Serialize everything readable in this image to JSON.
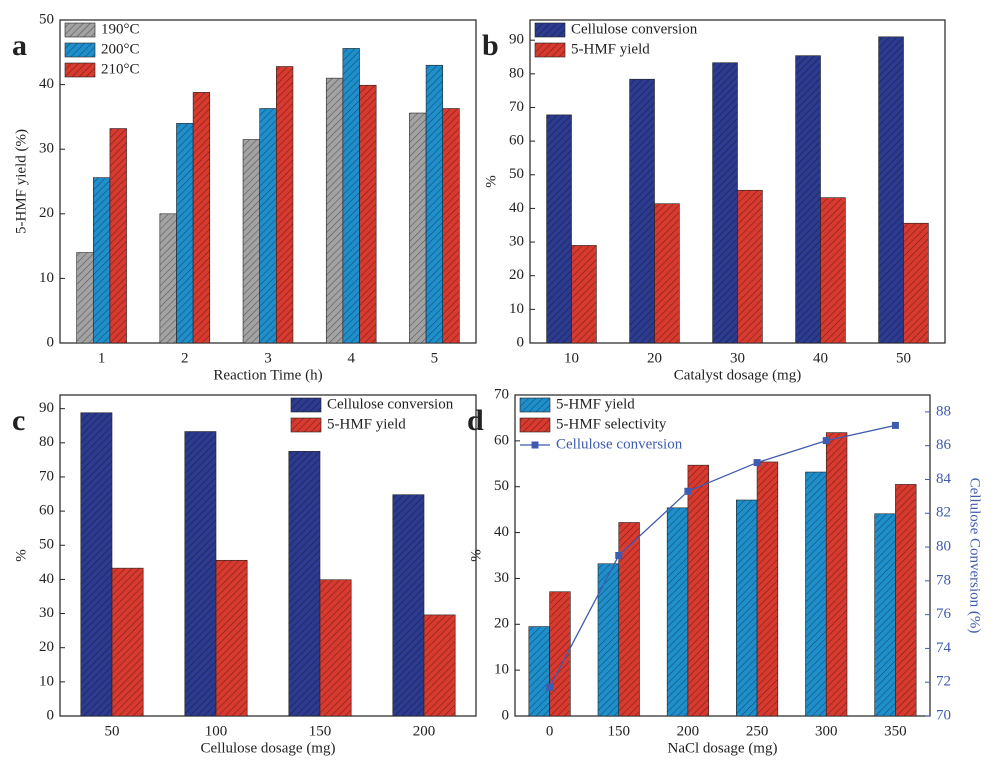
{
  "chart_data": [
    {
      "type": "bar",
      "panel_label": "a",
      "xlabel": "Reaction Time (h)",
      "ylabel": "5-HMF yield (%)",
      "categories": [
        "1",
        "2",
        "3",
        "4",
        "5"
      ],
      "series": [
        {
          "name": "190°C",
          "color": "#a3a3a3",
          "values": [
            14,
            20,
            31.5,
            41,
            35.6
          ]
        },
        {
          "name": "200°C",
          "color": "#1f8fcc",
          "values": [
            25.6,
            34,
            36.3,
            45.6,
            43
          ]
        },
        {
          "name": "210°C",
          "color": "#d83a2f",
          "values": [
            33.2,
            38.8,
            42.8,
            39.9,
            36.3
          ]
        }
      ],
      "ylim": [
        0,
        50
      ],
      "yticks": [
        0,
        10,
        20,
        30,
        40,
        50
      ],
      "legend": "upper left"
    },
    {
      "type": "bar",
      "panel_label": "b",
      "xlabel": "Catalyst dosage (mg)",
      "ylabel": "%",
      "categories": [
        "10",
        "20",
        "30",
        "40",
        "50"
      ],
      "series": [
        {
          "name": "Cellulose conversion",
          "color": "#2c3b8f",
          "values": [
            67.8,
            78.4,
            83.3,
            85.4,
            91
          ]
        },
        {
          "name": "5-HMF yield",
          "color": "#d83a2f",
          "values": [
            29,
            41.4,
            45.4,
            43.2,
            35.6
          ]
        }
      ],
      "ylim": [
        0,
        96
      ],
      "yticks": [
        0,
        10,
        20,
        30,
        40,
        50,
        60,
        70,
        80,
        90
      ],
      "legend": "upper left"
    },
    {
      "type": "bar",
      "panel_label": "c",
      "xlabel": "Cellulose dosage (mg)",
      "ylabel": "%",
      "categories": [
        "50",
        "100",
        "150",
        "200"
      ],
      "series": [
        {
          "name": "Cellulose conversion",
          "color": "#2c3b8f",
          "values": [
            88.8,
            83.3,
            77.5,
            64.8
          ]
        },
        {
          "name": "5-HMF yield",
          "color": "#d83a2f",
          "values": [
            43.3,
            45.6,
            39.9,
            29.6
          ]
        }
      ],
      "ylim": [
        0,
        94
      ],
      "yticks": [
        0,
        10,
        20,
        30,
        40,
        50,
        60,
        70,
        80,
        90
      ],
      "legend": "upper right"
    },
    {
      "type": "bar",
      "panel_label": "d",
      "xlabel": "NaCl dosage (mg)",
      "ylabel": "%",
      "y2label": "Cellulose Conversion (%)",
      "categories": [
        "0",
        "150",
        "200",
        "250",
        "300",
        "350"
      ],
      "series": [
        {
          "name": "5-HMF yield",
          "color": "#1f8fcc",
          "values": [
            19.5,
            33.2,
            45.4,
            47.1,
            53.2,
            44.1
          ]
        },
        {
          "name": "5-HMF selectivity",
          "color": "#d83a2f",
          "values": [
            27.1,
            42.2,
            54.7,
            55.4,
            61.8,
            50.5
          ]
        },
        {
          "name": "Cellulose conversion",
          "color": "#3f5bb0",
          "type": "line",
          "axis": "y2",
          "values": [
            71.7,
            79.5,
            83.3,
            85,
            86.3,
            87.2
          ]
        }
      ],
      "ylim": [
        0,
        70
      ],
      "yticks": [
        0,
        10,
        20,
        30,
        40,
        50,
        60,
        70
      ],
      "y2lim": [
        70,
        89
      ],
      "y2ticks": [
        70,
        72,
        74,
        76,
        78,
        80,
        82,
        84,
        86,
        88
      ],
      "legend": "upper left"
    }
  ]
}
